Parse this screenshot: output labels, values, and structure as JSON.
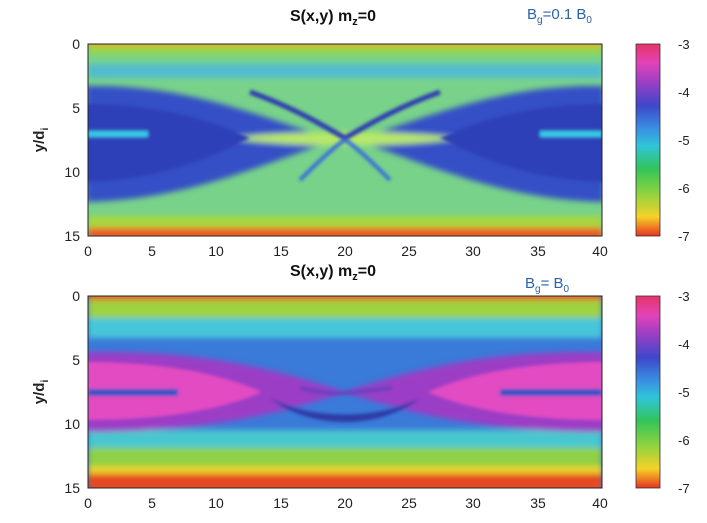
{
  "chart_data": [
    {
      "type": "heatmap",
      "title_main": "S(x,y) m",
      "title_sub": "z",
      "title_tail": "=0",
      "annotation_main": "B",
      "annotation_sub": "g",
      "annotation_tail": "=0.1 B",
      "annotation_tail_sub": "0",
      "ylabel_main": "y/d",
      "ylabel_sub": "i",
      "xlim": [
        0,
        40
      ],
      "ylim": [
        0,
        15
      ],
      "y_reversed": true,
      "xticks": [
        "0",
        "5",
        "10",
        "15",
        "20",
        "25",
        "30",
        "35",
        "40"
      ],
      "yticks": [
        "0",
        "5",
        "10",
        "15"
      ],
      "colorbar": {
        "min": -7,
        "max": -3,
        "ticks": [
          "-3",
          "-4",
          "-5",
          "-6",
          "-7"
        ],
        "colormap": "jet-like (red high, blue/magenta mid, green/yellow low)"
      },
      "background_level": -5.7,
      "features": [
        {
          "name": "upper-boundary-band",
          "value": -6.2
        },
        {
          "name": "lower-boundary-band",
          "value": -6.2
        },
        {
          "name": "left-island",
          "x_center": 0,
          "y_center": 7.5,
          "half_width": 15,
          "half_height": 4.5,
          "value": -4.3
        },
        {
          "name": "right-island",
          "x_center": 40,
          "y_center": 7.5,
          "half_width": 15,
          "half_height": 4.5,
          "value": -4.3
        },
        {
          "name": "central-current-sheet",
          "x_center": 20,
          "y_center": 7.5,
          "value": -4.8
        }
      ]
    },
    {
      "type": "heatmap",
      "title_main": "S(x,y) m",
      "title_sub": "z",
      "title_tail": "=0",
      "annotation_main": "B",
      "annotation_sub": "g",
      "annotation_tail": "= B",
      "annotation_tail_sub": "0",
      "ylabel_main": "y/d",
      "ylabel_sub": "i",
      "xlim": [
        0,
        40
      ],
      "ylim": [
        0,
        15
      ],
      "y_reversed": true,
      "xticks": [
        "0",
        "5",
        "10",
        "15",
        "20",
        "25",
        "30",
        "35",
        "40"
      ],
      "yticks": [
        "0",
        "5",
        "10",
        "15"
      ],
      "colorbar": {
        "min": -7,
        "max": -3,
        "ticks": [
          "-3",
          "-4",
          "-5",
          "-6",
          "-7"
        ],
        "colormap": "jet-like (red high, blue/magenta mid, green/yellow low)"
      },
      "background_level": -4.6,
      "features": [
        {
          "name": "upper-boundary-band",
          "value": -6.0
        },
        {
          "name": "lower-boundary-band",
          "value": -6.0
        },
        {
          "name": "left-island",
          "x_center": 0,
          "y_center": 7.5,
          "half_width": 17,
          "half_height": 2.7,
          "value": -3.6
        },
        {
          "name": "right-island",
          "x_center": 40,
          "y_center": 7.5,
          "half_width": 17,
          "half_height": 2.7,
          "value": -3.6
        },
        {
          "name": "central-x-line",
          "x_center": 20,
          "y_center": 7.5,
          "value": -3.9
        }
      ]
    }
  ]
}
